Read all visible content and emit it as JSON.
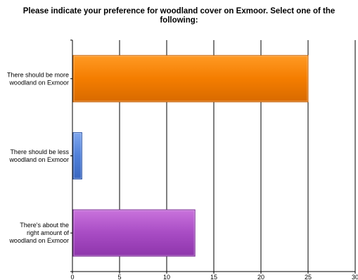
{
  "chart_data": {
    "type": "bar",
    "orientation": "horizontal",
    "title_lines": [
      "Please indicate your preference for woodland cover on Exmoor. Select one of the",
      "following:"
    ],
    "categories": [
      [
        "There should be more",
        "woodland on Exmoor"
      ],
      [
        "There should be less",
        "woodland on Exmoor"
      ],
      [
        "There's about the",
        "right amount of",
        "woodland on Exmoor"
      ]
    ],
    "values": [
      25,
      1,
      13
    ],
    "xlim": [
      0,
      30
    ],
    "xticks": [
      "0",
      "5",
      "10",
      "15",
      "20",
      "25",
      "30"
    ],
    "grid": "vertical",
    "legend": "none",
    "colors": [
      {
        "top": "#ff9a24",
        "mid": "#f47d00",
        "bottom": "#d86a00",
        "edge": "#c45f00"
      },
      {
        "top": "#7fa7ee",
        "mid": "#4f7fd9",
        "bottom": "#3a67c0",
        "edge": "#2f58a8"
      },
      {
        "top": "#c973dc",
        "mid": "#a84cc4",
        "bottom": "#8e35ab",
        "edge": "#7a2b94"
      }
    ]
  }
}
